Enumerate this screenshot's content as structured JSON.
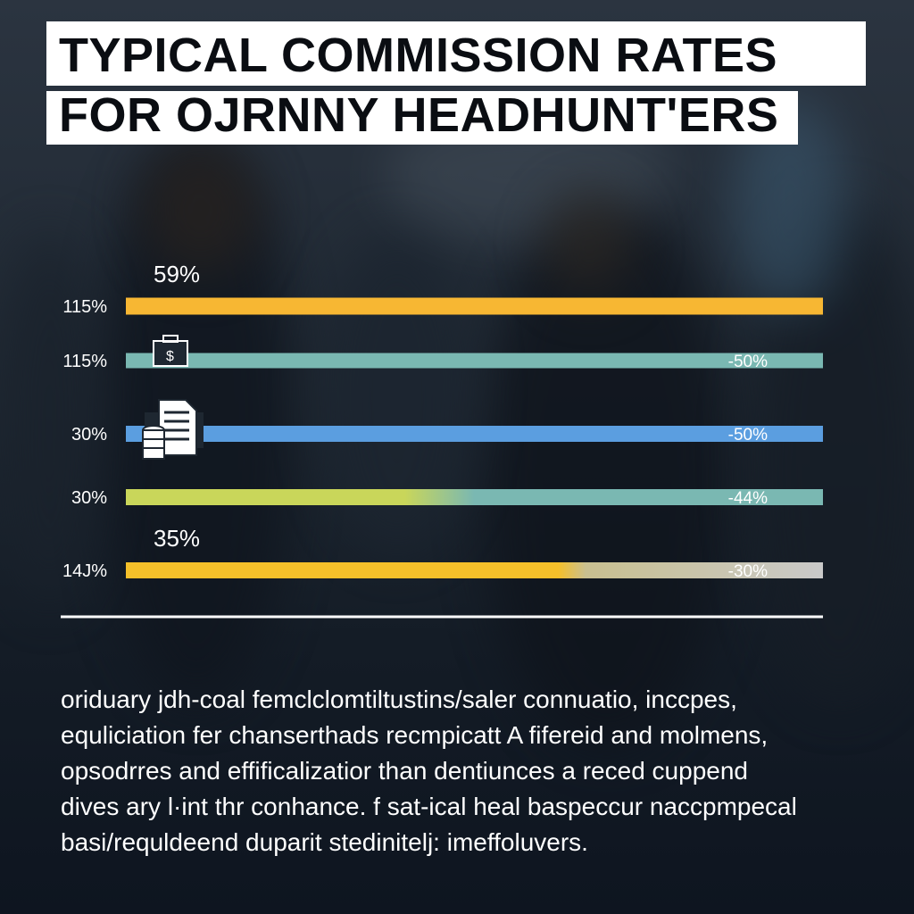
{
  "title_lines": [
    "TYPICAL COMMISSION RATES",
    "FOR OJRNNY HEADHUNT'ERS"
  ],
  "chart_data": {
    "type": "bar",
    "orientation": "horizontal",
    "bars": [
      {
        "left_label": "115%",
        "top_label": "59%",
        "right_label": "",
        "colors": [
          "#f7b733",
          "#f7b733"
        ]
      },
      {
        "left_label": "115%",
        "top_label": "",
        "right_label": "-50%",
        "colors": [
          "#7ab8b2",
          "#7ab8b2"
        ]
      },
      {
        "left_label": "30%",
        "top_label": "",
        "right_label": "-50%",
        "colors": [
          "#5b9ee0",
          "#5b9ee0"
        ]
      },
      {
        "left_label": "30%",
        "top_label": "",
        "right_label": "-44%",
        "colors": [
          "#c9d65a",
          "#7ab8b2"
        ]
      },
      {
        "left_label": "14J%",
        "top_label": "35%",
        "right_label": "-30%",
        "colors": [
          "#f5c02a",
          "#c9c9c9"
        ]
      }
    ]
  },
  "icons": [
    "briefcase-dollar-icon",
    "document-coins-icon"
  ],
  "caption_lines": [
    "oriduary jdh-coal femclclomtiltustins/saler connuatio, inccpes,",
    "equliciation fer chanserthads recmpicatt A fifereid and molmens,",
    "opsodrres and effificalizatior than dentiunces a reced cuppend",
    "dives ary l·int thr conhance. f sat-ical heal baspeccur naccpmpecal",
    "basi/requldeend duparit stedinitelj: imeffoluvers."
  ]
}
